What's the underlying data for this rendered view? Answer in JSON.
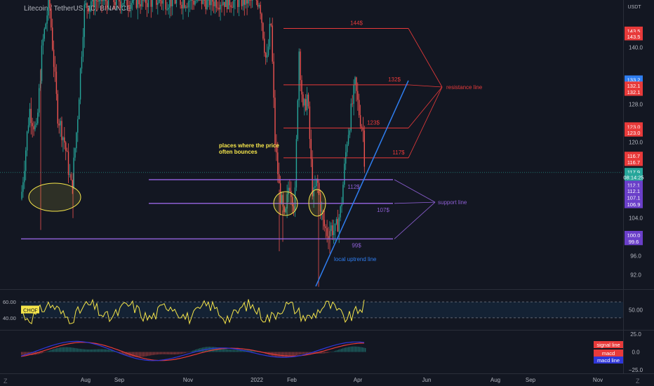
{
  "header": {
    "symbol": "Litecoin / TetherUS, 1D, BINANCE",
    "currency": "USDT"
  },
  "footer": {
    "left_badge": "Z",
    "right_badge": "Z"
  },
  "colors": {
    "background": "#131722",
    "up_candle": "#26a69a",
    "down_candle": "#ef5350",
    "resistance": "#e83a3a",
    "support": "#8d5fd3",
    "uptrend": "#2f7ef0",
    "chop_line": "#f5e54a",
    "macd_line": "#2f36d8",
    "signal_line": "#e83a3a",
    "annotation_yellow": "#f5e54a"
  },
  "chart_data": [
    {
      "type": "line",
      "title": "Litecoin / TetherUS, 1D, BINANCE",
      "note": "daily candlestick price chart",
      "ylabel": "USDT",
      "ylim": [
        89,
        150
      ],
      "yticks": [
        92.0,
        96.0,
        100.0,
        104.0,
        108.0,
        112.0,
        116.0,
        120.0,
        124.0,
        128.0,
        132.0,
        136.0,
        140.0,
        144.0,
        148.0
      ],
      "ytick_labels_visible": [
        "92.0",
        "96.0",
        "104.0",
        "120.0",
        "128.0",
        "140.0"
      ],
      "x_axis_labels": [
        "Aug",
        "Sep",
        "Nov",
        "2022",
        "Feb",
        "Apr",
        "Jun",
        "Aug",
        "Sep",
        "Nov"
      ],
      "price_tags": [
        {
          "label": "143.5",
          "value": 143.5,
          "color": "#e83a3a"
        },
        {
          "label": "143.5",
          "value": 142.3,
          "color": "#e83a3a"
        },
        {
          "label": "133.2",
          "value": 133.2,
          "color": "#2f7ef0"
        },
        {
          "label": "132.1",
          "value": 131.9,
          "color": "#e83a3a"
        },
        {
          "label": "132.1",
          "value": 130.6,
          "color": "#e83a3a"
        },
        {
          "label": "123.0",
          "value": 123.3,
          "color": "#e83a3a"
        },
        {
          "label": "123.0",
          "value": 122.0,
          "color": "#e83a3a"
        },
        {
          "label": "116.7",
          "value": 117.1,
          "color": "#e83a3a"
        },
        {
          "label": "116.7",
          "value": 115.8,
          "color": "#e83a3a"
        },
        {
          "label": "117.9",
          "value": 113.7,
          "color": "#26a69a"
        },
        {
          "label": "08:14:25",
          "value": 112.6,
          "color": "#26a69a"
        },
        {
          "label": "112.1",
          "value": 111.0,
          "color": "#6a3fc9"
        },
        {
          "label": "112.1",
          "value": 109.7,
          "color": "#6a3fc9"
        },
        {
          "label": "107.1",
          "value": 108.3,
          "color": "#6a3fc9"
        },
        {
          "label": "106.9",
          "value": 106.9,
          "color": "#6a3fc9"
        },
        {
          "label": "100.0",
          "value": 100.4,
          "color": "#6a3fc9"
        },
        {
          "label": "99.6",
          "value": 99.1,
          "color": "#6a3fc9"
        }
      ],
      "resistance_levels": [
        {
          "label": "144$",
          "value": 144.0
        },
        {
          "label": "132$",
          "value": 132.1
        },
        {
          "label": "123$",
          "value": 123.0
        },
        {
          "label": "117$",
          "value": 116.7
        }
      ],
      "support_levels": [
        {
          "label": "112$",
          "value": 112.1
        },
        {
          "label": "107$",
          "value": 107.1
        },
        {
          "label": "99$",
          "value": 99.6
        }
      ],
      "annotations": {
        "resistance": "resistance line",
        "support": "support line",
        "uptrend": "local uptrend line",
        "bounce": "places where the price often bounces"
      }
    },
    {
      "type": "line",
      "title": "CHOP",
      "ylim": [
        25,
        75
      ],
      "bands": [
        60.0,
        40.0
      ],
      "band_labels": [
        "60.00",
        "40.00"
      ],
      "right_label": "50.00"
    },
    {
      "type": "line",
      "title": "MACD",
      "ylim": [
        -30,
        30
      ],
      "ytick_labels": [
        "25.0",
        "0.0",
        "−25.0"
      ],
      "legend": [
        "signal line",
        "macd",
        "macd line"
      ]
    }
  ]
}
